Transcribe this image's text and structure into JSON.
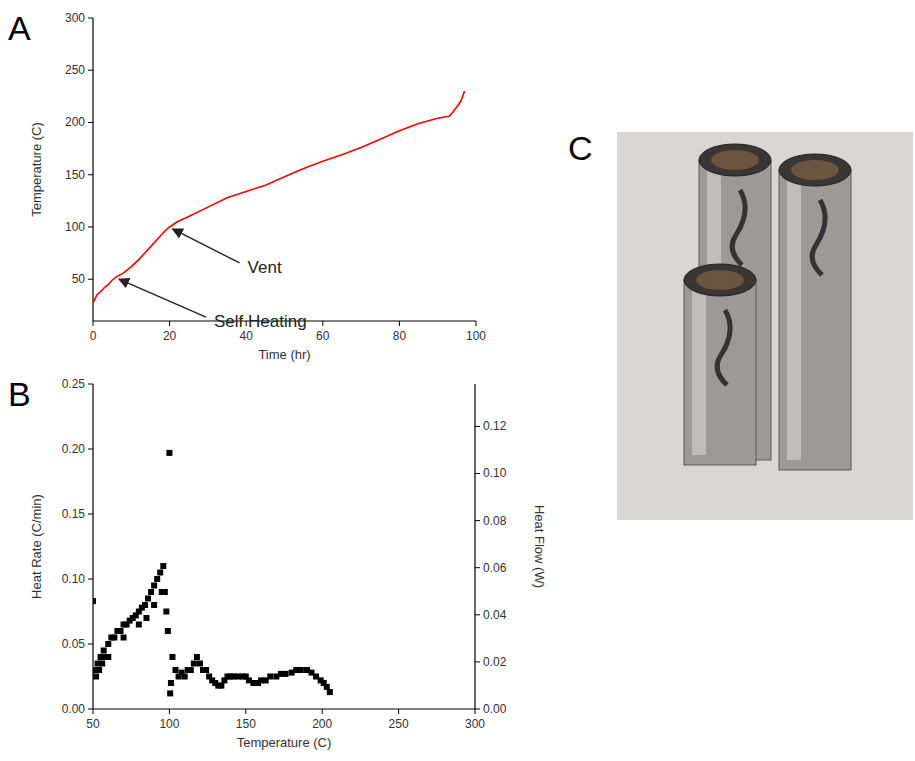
{
  "chart_data": [
    {
      "panel_label": "A",
      "type": "line",
      "x_label": "Time (hr)",
      "y_label": "Temperature (C)",
      "color": "#ff0000",
      "xlim": [
        0,
        100
      ],
      "xticks": [
        0,
        20,
        40,
        60,
        80,
        100
      ],
      "ylim": [
        10,
        300
      ],
      "yticks": [
        50,
        100,
        150,
        200,
        250,
        300
      ],
      "x": [
        0,
        1,
        2,
        3,
        4,
        5,
        6,
        8,
        10,
        12,
        14,
        16,
        18,
        19,
        20,
        22,
        25,
        30,
        35,
        40,
        45,
        50,
        55,
        60,
        65,
        70,
        75,
        80,
        85,
        90,
        93,
        94,
        95,
        96,
        97
      ],
      "values": [
        27,
        35,
        38,
        42,
        45,
        49,
        52,
        56,
        62,
        69,
        77,
        85,
        93,
        97,
        100,
        105,
        110,
        119,
        128,
        134,
        140,
        148,
        156,
        163,
        169,
        176,
        184,
        192,
        199,
        204,
        206,
        210,
        215,
        220,
        230
      ],
      "annotations": [
        {
          "text": "Vent",
          "x": 20,
          "y": 100
        },
        {
          "text": "Self Heating",
          "x": 6,
          "y": 52
        }
      ]
    },
    {
      "panel_label": "B",
      "type": "scatter",
      "x_label": "Temperature (C)",
      "y_label": "Heat Rate (C/min)",
      "y2_label": "Heat Flow (W)",
      "color": "#000000",
      "marker": "square",
      "xlim": [
        50,
        300
      ],
      "xticks": [
        50,
        100,
        150,
        200,
        250,
        300
      ],
      "ylim": [
        0,
        0.25
      ],
      "yticks": [
        {
          "value": 0,
          "label": "0.00"
        },
        {
          "value": 0.05,
          "label": "0.05"
        },
        {
          "value": 0.1,
          "label": "0.10"
        },
        {
          "value": 0.15,
          "label": "0.15"
        },
        {
          "value": 0.2,
          "label": "0.20"
        },
        {
          "value": 0.25,
          "label": "0.25"
        }
      ],
      "y2lim": [
        0,
        0.138
      ],
      "y2ticks": [
        {
          "value": 0,
          "label": "0.00"
        },
        {
          "value": 0.02,
          "label": "0.02"
        },
        {
          "value": 0.04,
          "label": "0.04"
        },
        {
          "value": 0.06,
          "label": "0.06"
        },
        {
          "value": 0.08,
          "label": "0.08"
        },
        {
          "value": 0.1,
          "label": "0.10"
        },
        {
          "value": 0.12,
          "label": "0.12"
        }
      ],
      "x": [
        50,
        51,
        52,
        53,
        54,
        55,
        56,
        57,
        58,
        60,
        62,
        64,
        66,
        68,
        70,
        72,
        74,
        76,
        78,
        80,
        82,
        84,
        86,
        88,
        90,
        92,
        94,
        96,
        97,
        98,
        99,
        100,
        100.5,
        101,
        102,
        104,
        106,
        108,
        110,
        112,
        114,
        116,
        118,
        120,
        122,
        124,
        126,
        128,
        130,
        132,
        134,
        136,
        138,
        140,
        142,
        145,
        148,
        150,
        152,
        155,
        158,
        160,
        163,
        166,
        170,
        173,
        176,
        180,
        183,
        186,
        190,
        193,
        196,
        199,
        201,
        203,
        205,
        60,
        70,
        80,
        85,
        90,
        95
      ],
      "values": [
        0.083,
        0.03,
        0.025,
        0.035,
        0.03,
        0.04,
        0.035,
        0.045,
        0.04,
        0.05,
        0.055,
        0.055,
        0.06,
        0.06,
        0.065,
        0.065,
        0.068,
        0.07,
        0.072,
        0.075,
        0.078,
        0.08,
        0.085,
        0.09,
        0.095,
        0.1,
        0.105,
        0.11,
        0.09,
        0.075,
        0.06,
        0.197,
        0.012,
        0.02,
        0.04,
        0.03,
        0.025,
        0.028,
        0.025,
        0.03,
        0.03,
        0.035,
        0.04,
        0.035,
        0.03,
        0.03,
        0.025,
        0.022,
        0.02,
        0.018,
        0.018,
        0.022,
        0.025,
        0.025,
        0.025,
        0.025,
        0.025,
        0.025,
        0.022,
        0.02,
        0.02,
        0.022,
        0.022,
        0.025,
        0.025,
        0.027,
        0.027,
        0.028,
        0.03,
        0.03,
        0.03,
        0.028,
        0.025,
        0.022,
        0.02,
        0.017,
        0.013,
        0.04,
        0.055,
        0.065,
        0.07,
        0.08,
        0.09
      ]
    }
  ],
  "photo": {
    "panel_label": "C"
  }
}
